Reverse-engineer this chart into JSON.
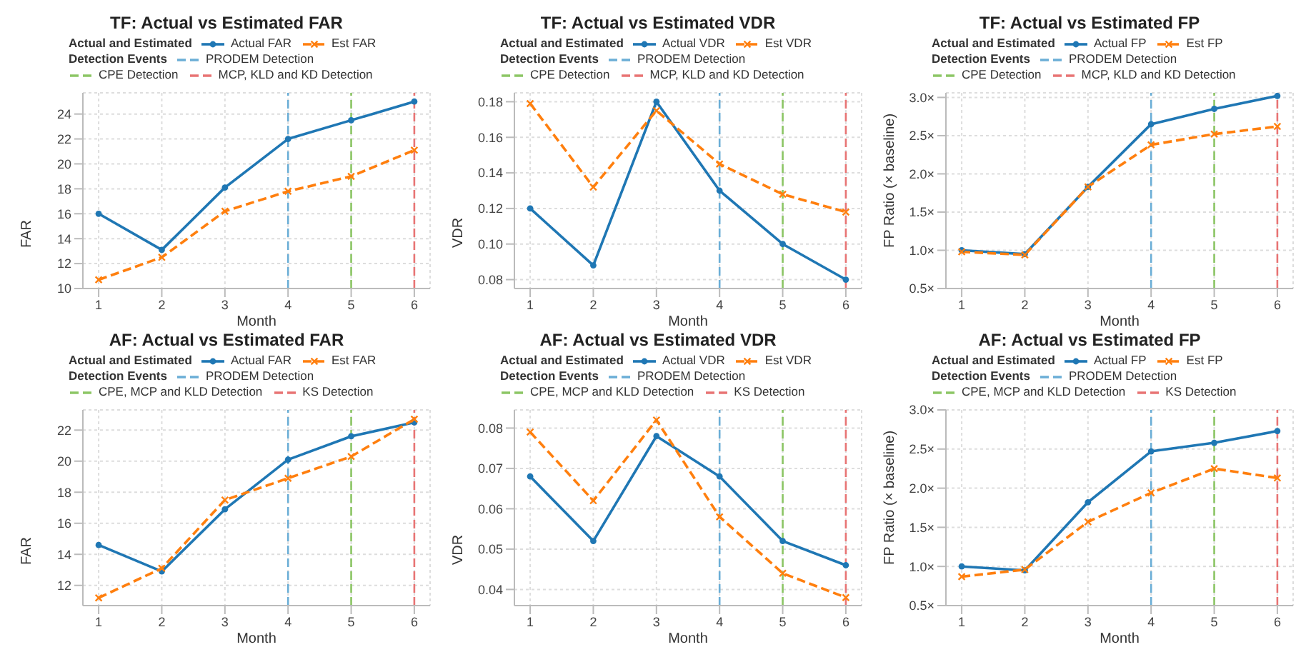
{
  "chart_data": [
    {
      "type": "line",
      "title": "TF: Actual vs Estimated FAR",
      "xlabel": "Month",
      "ylabel": "FAR",
      "legend_title": "Actual and Estimated",
      "annotations": [
        "Detection Events"
      ],
      "legend": "top",
      "grid": true,
      "x": [
        1,
        2,
        3,
        4,
        5,
        6
      ],
      "xlim": [
        0.75,
        6.25
      ],
      "xticks": [
        1,
        2,
        3,
        4,
        5,
        6
      ],
      "ylim": [
        10,
        25.7
      ],
      "yticks": [
        10,
        12,
        14,
        16,
        18,
        20,
        22,
        24
      ],
      "series": [
        {
          "name": "Actual FAR",
          "color": "#1f77b4",
          "marker": "circle",
          "line_style": "solid",
          "values": [
            16,
            13.1,
            18.1,
            22,
            23.5,
            25
          ]
        },
        {
          "name": "Est FAR",
          "color": "#ff7f0e",
          "marker": "cross",
          "line_style": "dashed",
          "values": [
            10.7,
            12.5,
            16.2,
            17.8,
            19,
            21.1
          ]
        }
      ],
      "ref_lines": [
        {
          "axis": "x",
          "value": 4,
          "label": "PRODEM Detection",
          "color": "#6baed6",
          "line_style": "dashed"
        },
        {
          "axis": "x",
          "value": 5,
          "label": "CPE Detection",
          "color": "#8cc665",
          "line_style": "dashed"
        },
        {
          "axis": "x",
          "value": 6,
          "label": "MCP, KLD and KD Detection",
          "color": "#e87474",
          "line_style": "dashed"
        }
      ]
    },
    {
      "type": "line",
      "title": "TF: Actual vs Estimated VDR",
      "xlabel": "Month",
      "ylabel": "VDR",
      "legend_title": "Actual and Estimated",
      "annotations": [
        "Detection Events"
      ],
      "legend": "top",
      "grid": true,
      "x": [
        1,
        2,
        3,
        4,
        5,
        6
      ],
      "xlim": [
        0.75,
        6.25
      ],
      "xticks": [
        1,
        2,
        3,
        4,
        5,
        6
      ],
      "ylim": [
        0.075,
        0.185
      ],
      "yticks": [
        0.08,
        {
          "value": 0.1,
          "label": "0.10"
        },
        0.12,
        0.14,
        0.16,
        0.18
      ],
      "series": [
        {
          "name": "Actual VDR",
          "color": "#1f77b4",
          "marker": "circle",
          "line_style": "solid",
          "values": [
            0.12,
            0.088,
            0.18,
            0.13,
            0.1,
            0.08
          ]
        },
        {
          "name": "Est VDR",
          "color": "#ff7f0e",
          "marker": "cross",
          "line_style": "dashed",
          "values": [
            0.179,
            0.132,
            0.175,
            0.145,
            0.128,
            0.118
          ]
        }
      ],
      "ref_lines": [
        {
          "axis": "x",
          "value": 4,
          "label": "PRODEM Detection",
          "color": "#6baed6",
          "line_style": "dashed"
        },
        {
          "axis": "x",
          "value": 5,
          "label": "CPE Detection",
          "color": "#8cc665",
          "line_style": "dashed"
        },
        {
          "axis": "x",
          "value": 6,
          "label": "MCP, KLD and KD Detection",
          "color": "#e87474",
          "line_style": "dashed"
        }
      ]
    },
    {
      "type": "line",
      "title": "TF: Actual vs Estimated FP",
      "xlabel": "Month",
      "ylabel": "FP Ratio (× baseline)",
      "legend_title": "Actual and Estimated",
      "annotations": [
        "Detection Events"
      ],
      "legend": "top",
      "grid": true,
      "x": [
        1,
        2,
        3,
        4,
        5,
        6
      ],
      "xlim": [
        0.75,
        6.25
      ],
      "xticks": [
        1,
        2,
        3,
        4,
        5,
        6
      ],
      "ylim": [
        0.5,
        3.06
      ],
      "yticks": [
        {
          "value": 0.5,
          "label": "0.5×"
        },
        {
          "value": 1,
          "label": "1.0×"
        },
        {
          "value": 1.5,
          "label": "1.5×"
        },
        {
          "value": 2,
          "label": "2.0×"
        },
        {
          "value": 2.5,
          "label": "2.5×"
        },
        {
          "value": 3,
          "label": "3.0×"
        }
      ],
      "series": [
        {
          "name": "Actual FP",
          "color": "#1f77b4",
          "marker": "circle",
          "line_style": "solid",
          "values": [
            1,
            0.95,
            1.83,
            2.65,
            2.85,
            3.02
          ]
        },
        {
          "name": "Est FP",
          "color": "#ff7f0e",
          "marker": "cross",
          "line_style": "dashed",
          "values": [
            0.98,
            0.94,
            1.83,
            2.38,
            2.52,
            2.62
          ]
        }
      ],
      "ref_lines": [
        {
          "axis": "x",
          "value": 4,
          "label": "PRODEM Detection",
          "color": "#6baed6",
          "line_style": "dashed"
        },
        {
          "axis": "x",
          "value": 5,
          "label": "CPE Detection",
          "color": "#8cc665",
          "line_style": "dashed"
        },
        {
          "axis": "x",
          "value": 6,
          "label": "MCP, KLD and KD Detection",
          "color": "#e87474",
          "line_style": "dashed"
        }
      ]
    },
    {
      "type": "line",
      "title": "AF: Actual vs Estimated FAR",
      "xlabel": "Month",
      "ylabel": "FAR",
      "legend_title": "Actual and Estimated",
      "annotations": [
        "Detection Events"
      ],
      "legend": "top",
      "grid": true,
      "x": [
        1,
        2,
        3,
        4,
        5,
        6
      ],
      "xlim": [
        0.75,
        6.25
      ],
      "xticks": [
        1,
        2,
        3,
        4,
        5,
        6
      ],
      "ylim": [
        10.7,
        23.3
      ],
      "yticks": [
        12,
        14,
        16,
        18,
        20,
        22
      ],
      "series": [
        {
          "name": "Actual FAR",
          "color": "#1f77b4",
          "marker": "circle",
          "line_style": "solid",
          "values": [
            14.6,
            12.9,
            16.9,
            20.1,
            21.6,
            22.5
          ]
        },
        {
          "name": "Est FAR",
          "color": "#ff7f0e",
          "marker": "cross",
          "line_style": "dashed",
          "values": [
            11.2,
            13.1,
            17.5,
            18.9,
            20.3,
            22.7
          ]
        }
      ],
      "ref_lines": [
        {
          "axis": "x",
          "value": 4,
          "label": "PRODEM Detection",
          "color": "#6baed6",
          "line_style": "dashed"
        },
        {
          "axis": "x",
          "value": 5,
          "label": "CPE, MCP and KLD Detection",
          "color": "#8cc665",
          "line_style": "dashed"
        },
        {
          "axis": "x",
          "value": 6,
          "label": "KS Detection",
          "color": "#e87474",
          "line_style": "dashed"
        }
      ]
    },
    {
      "type": "line",
      "title": "AF: Actual vs Estimated VDR",
      "xlabel": "Month",
      "ylabel": "VDR",
      "legend_title": "Actual and Estimated",
      "annotations": [
        "Detection Events"
      ],
      "legend": "top",
      "grid": true,
      "x": [
        1,
        2,
        3,
        4,
        5,
        6
      ],
      "xlim": [
        0.75,
        6.25
      ],
      "xticks": [
        1,
        2,
        3,
        4,
        5,
        6
      ],
      "ylim": [
        0.036,
        0.0845
      ],
      "yticks": [
        0.04,
        0.05,
        0.06,
        0.07,
        0.08
      ],
      "series": [
        {
          "name": "Actual VDR",
          "color": "#1f77b4",
          "marker": "circle",
          "line_style": "solid",
          "values": [
            0.068,
            0.052,
            0.078,
            0.068,
            0.052,
            0.046
          ]
        },
        {
          "name": "Est VDR",
          "color": "#ff7f0e",
          "marker": "cross",
          "line_style": "dashed",
          "values": [
            0.079,
            0.062,
            0.082,
            0.058,
            0.044,
            0.038
          ]
        }
      ],
      "ref_lines": [
        {
          "axis": "x",
          "value": 4,
          "label": "PRODEM Detection",
          "color": "#6baed6",
          "line_style": "dashed"
        },
        {
          "axis": "x",
          "value": 5,
          "label": "CPE, MCP and KLD Detection",
          "color": "#8cc665",
          "line_style": "dashed"
        },
        {
          "axis": "x",
          "value": 6,
          "label": "KS Detection",
          "color": "#e87474",
          "line_style": "dashed"
        }
      ]
    },
    {
      "type": "line",
      "title": "AF: Actual vs Estimated FP",
      "xlabel": "Month",
      "ylabel": "FP Ratio (× baseline)",
      "legend_title": "Actual and Estimated",
      "annotations": [
        "Detection Events"
      ],
      "legend": "top",
      "grid": true,
      "x": [
        1,
        2,
        3,
        4,
        5,
        6
      ],
      "xlim": [
        0.75,
        6.25
      ],
      "xticks": [
        1,
        2,
        3,
        4,
        5,
        6
      ],
      "ylim": [
        0.5,
        3
      ],
      "yticks": [
        {
          "value": 0.5,
          "label": "0.5×"
        },
        {
          "value": 1,
          "label": "1.0×"
        },
        {
          "value": 1.5,
          "label": "1.5×"
        },
        {
          "value": 2,
          "label": "2.0×"
        },
        {
          "value": 2.5,
          "label": "2.5×"
        },
        {
          "value": 3,
          "label": "3.0×"
        }
      ],
      "series": [
        {
          "name": "Actual FP",
          "color": "#1f77b4",
          "marker": "circle",
          "line_style": "solid",
          "values": [
            1,
            0.95,
            1.82,
            2.47,
            2.58,
            2.73
          ]
        },
        {
          "name": "Est FP",
          "color": "#ff7f0e",
          "marker": "cross",
          "line_style": "dashed",
          "values": [
            0.87,
            0.96,
            1.57,
            1.94,
            2.25,
            2.13
          ]
        }
      ],
      "ref_lines": [
        {
          "axis": "x",
          "value": 4,
          "label": "PRODEM Detection",
          "color": "#6baed6",
          "line_style": "dashed"
        },
        {
          "axis": "x",
          "value": 5,
          "label": "CPE, MCP and KLD Detection",
          "color": "#8cc665",
          "line_style": "dashed"
        },
        {
          "axis": "x",
          "value": 6,
          "label": "KS Detection",
          "color": "#e87474",
          "line_style": "dashed"
        }
      ]
    }
  ]
}
